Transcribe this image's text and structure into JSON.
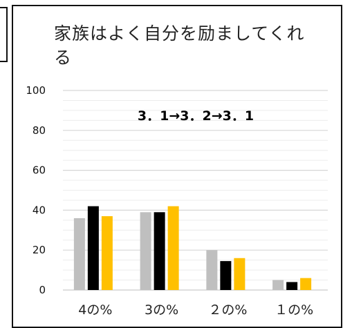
{
  "chart_data": {
    "type": "bar",
    "title": "家族はよく自分を励ましてくれる",
    "annotation": "3．1→3．2→3．1",
    "categories": [
      "4の%",
      "3の%",
      "２の%",
      "１の%"
    ],
    "series": [
      {
        "color": "#bfbfbf",
        "values": [
          36,
          39,
          20,
          5
        ]
      },
      {
        "color": "#000000",
        "values": [
          42,
          39,
          14.5,
          4
        ]
      },
      {
        "color": "#ffc000",
        "values": [
          37,
          42,
          16,
          6
        ]
      }
    ],
    "ylim": [
      0,
      100
    ],
    "yticks": [
      "100",
      "80",
      "60",
      "40",
      "20",
      "0"
    ],
    "grid": true,
    "minor_grid": true,
    "legend": "none"
  }
}
